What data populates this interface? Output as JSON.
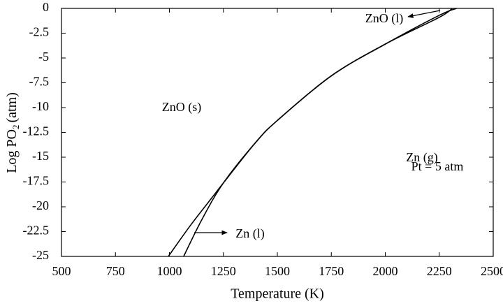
{
  "chart_data": {
    "type": "line",
    "xlabel": "Temperature (K)",
    "ylabel": {
      "text": "Log PO",
      "sub": "2",
      "rest": "(atm)"
    },
    "annotations": [
      "ZnO (s)",
      "Zn (g)",
      "Pt = 5 atm",
      "ZnO (l)",
      "Zn (l)"
    ],
    "xlim": [
      500,
      2500
    ],
    "xticks": [
      500,
      750,
      1000,
      1250,
      1500,
      1750,
      2000,
      2250,
      2500
    ],
    "ylim": [
      -25,
      0
    ],
    "yticks": [
      0,
      -2.5,
      -5,
      -7.5,
      -10,
      -12.5,
      -15,
      -17.5,
      -20,
      -22.5,
      -25
    ],
    "series": [
      {
        "color": "#000000",
        "x": [
          995,
          1100,
          1200,
          1250,
          1400,
          1500,
          1750,
          2000,
          2250,
          2310
        ],
        "values": [
          -25,
          -21.8,
          -19,
          -17.6,
          -13.5,
          -11.3,
          -6.8,
          -3.6,
          -0.9,
          0
        ]
      },
      {
        "color": "#000000",
        "x": [
          1066,
          1150,
          1250,
          1400,
          1500,
          1750,
          2000,
          2250,
          2330
        ],
        "values": [
          -25,
          -21.3,
          -17.6,
          -13.5,
          -11.3,
          -6.8,
          -3.6,
          -0.7,
          0
        ]
      }
    ]
  }
}
